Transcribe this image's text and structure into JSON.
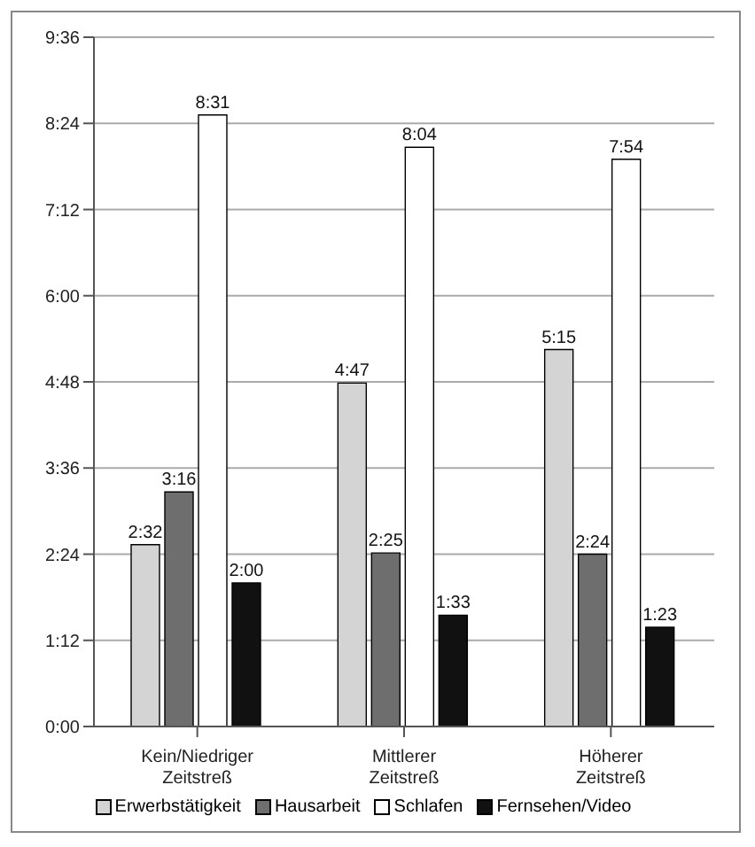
{
  "chart_data": {
    "type": "bar",
    "categories": [
      "Kein/Niedriger Zeitstreß",
      "Mittlerer Zeitstreß",
      "Höherer Zeitstreß"
    ],
    "series": [
      {
        "name": "Erwerbstätigkeit",
        "color": "#d4d4d4",
        "values": [
          2.5333,
          4.7833,
          5.25
        ],
        "value_labels": [
          "2:32",
          "4:47",
          "5:15"
        ]
      },
      {
        "name": "Hausarbeit",
        "color": "#6e6e6e",
        "values": [
          3.2667,
          2.4167,
          2.4
        ],
        "value_labels": [
          "3:16",
          "2:25",
          "2:24"
        ]
      },
      {
        "name": "Schlafen",
        "color": "#ffffff",
        "values": [
          8.5167,
          8.0667,
          7.9
        ],
        "value_labels": [
          "8:31",
          "8:04",
          "7:54"
        ]
      },
      {
        "name": "Fernsehen/Video",
        "color": "#111111",
        "values": [
          2.0,
          1.55,
          1.3833
        ],
        "value_labels": [
          "2:00",
          "1:33",
          "1:23"
        ]
      }
    ],
    "ylim": [
      0,
      9.6
    ],
    "yticks": [
      {
        "value": 0,
        "label": "0:00"
      },
      {
        "value": 1.2,
        "label": "1:12"
      },
      {
        "value": 2.4,
        "label": "2:24"
      },
      {
        "value": 3.6,
        "label": "3:36"
      },
      {
        "value": 4.8,
        "label": "4:48"
      },
      {
        "value": 6,
        "label": "6:00"
      },
      {
        "value": 7.2,
        "label": "7:12"
      },
      {
        "value": 8.4,
        "label": "8:24"
      },
      {
        "value": 9.6,
        "label": "9:36"
      }
    ],
    "grid": "y",
    "legend": "bottom"
  }
}
